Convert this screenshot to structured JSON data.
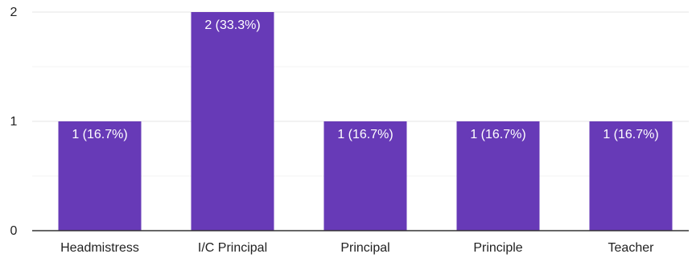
{
  "chart_data": {
    "type": "bar",
    "title": "",
    "xlabel": "",
    "ylabel": "",
    "categories": [
      "Headmistress",
      "I/C Principal",
      "Principal",
      "Principle",
      "Teacher"
    ],
    "values": [
      1,
      2,
      1,
      1,
      1
    ],
    "data_labels": [
      "1 (16.7%)",
      "2 (33.3%)",
      "1 (16.7%)",
      "1 (16.7%)",
      "1 (16.7%)"
    ],
    "ylim": [
      0,
      2
    ],
    "y_ticks": [
      0,
      1,
      2
    ],
    "grid": true,
    "legend": "none",
    "colors": {
      "bar": "#673ab7",
      "grid_major": "#e6e6e6",
      "grid_minor": "#f3f3f3",
      "axis": "#333333",
      "tick_text": "#222222",
      "data_label_text": "#ffffff"
    }
  }
}
